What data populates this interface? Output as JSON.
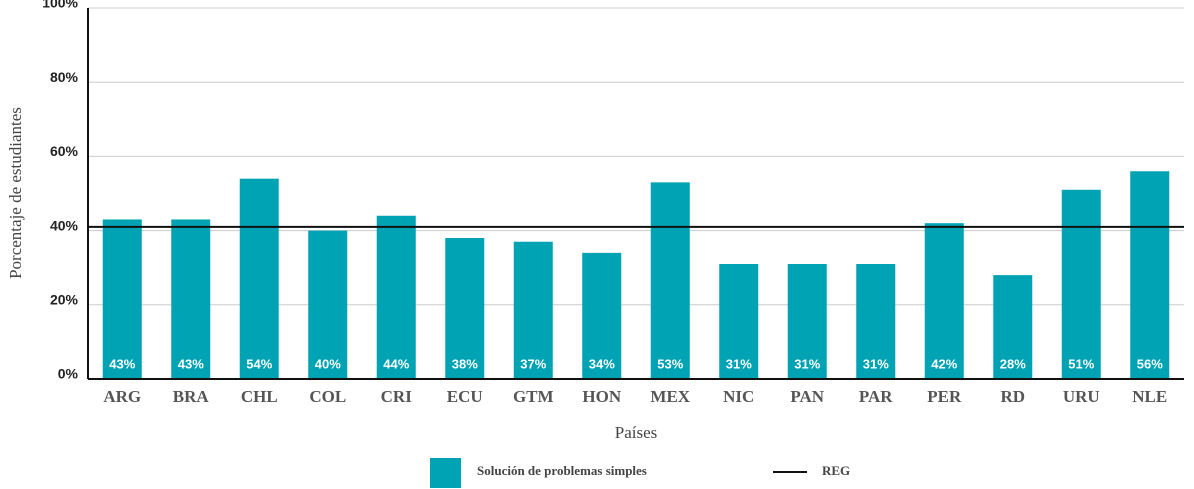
{
  "chart_data": {
    "type": "bar",
    "categories": [
      "ARG",
      "BRA",
      "CHL",
      "COL",
      "CRI",
      "ECU",
      "GTM",
      "HON",
      "MEX",
      "NIC",
      "PAN",
      "PAR",
      "PER",
      "RD",
      "URU",
      "NLE"
    ],
    "series": [
      {
        "name": "Solución de problemas simples",
        "color": "#00a3b4",
        "values": [
          43,
          43,
          54,
          40,
          44,
          38,
          37,
          34,
          53,
          31,
          31,
          31,
          42,
          28,
          51,
          56
        ],
        "value_labels": [
          "43%",
          "43%",
          "54%",
          "40%",
          "44%",
          "38%",
          "37%",
          "34%",
          "53%",
          "31%",
          "31%",
          "31%",
          "42%",
          "28%",
          "51%",
          "56%"
        ]
      }
    ],
    "reference_line": {
      "name": "REG",
      "value": 41,
      "color": "#111111"
    },
    "ylim": [
      0,
      100
    ],
    "yticks": [
      {
        "value": 0,
        "label": "0%"
      },
      {
        "value": 20,
        "label": "20%"
      },
      {
        "value": 40,
        "label": "40%"
      },
      {
        "value": 60,
        "label": "60%"
      },
      {
        "value": 80,
        "label": "80%"
      },
      {
        "value": 100,
        "label": "100%"
      }
    ],
    "y_label": "Porcentaje de estudiantes",
    "x_label": "Países",
    "grid": true
  }
}
